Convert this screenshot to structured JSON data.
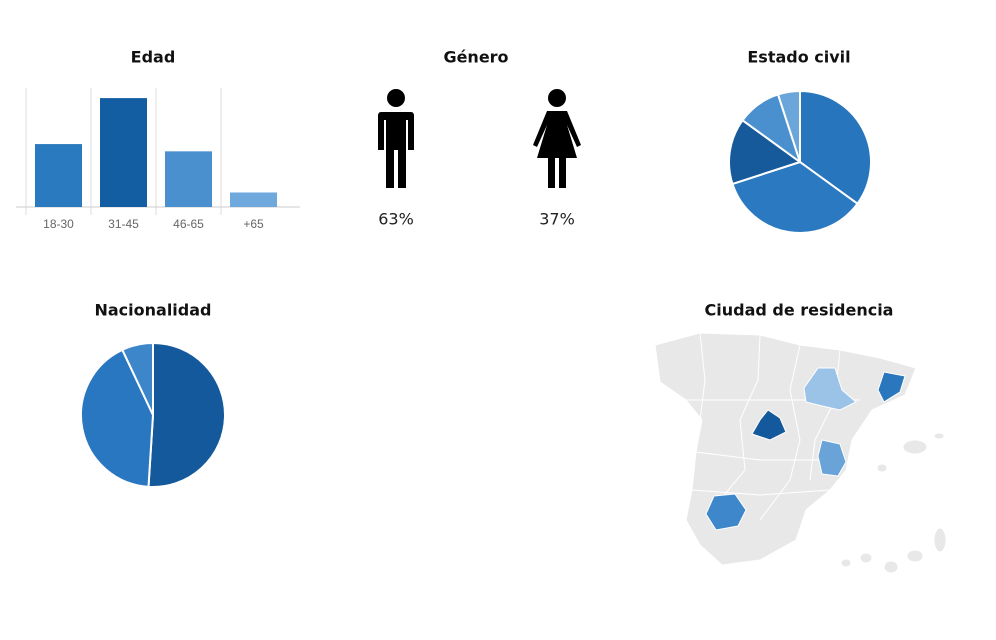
{
  "chart_data": [
    {
      "type": "bar",
      "title": "Edad",
      "categories": [
        "18-30",
        "31-45",
        "46-65",
        "+65"
      ],
      "values": [
        26,
        45,
        23,
        6
      ],
      "colors": [
        "#2a7abf",
        "#135ea3",
        "#4a8fce",
        "#6ea8dc"
      ]
    },
    {
      "type": "icon",
      "title": "Género",
      "values": [
        63,
        37
      ],
      "value_labels": [
        "63%",
        "37%"
      ],
      "color": "#000000"
    },
    {
      "type": "pie",
      "title": "Estado civil",
      "values": [
        35,
        35,
        15,
        10,
        5
      ],
      "colors": [
        "#2675bd",
        "#2a79c1",
        "#165a9c",
        "#4a8fce",
        "#6aa6da"
      ]
    },
    {
      "type": "pie",
      "title": "Nacionalidad",
      "values": [
        51,
        42,
        7
      ],
      "colors": [
        "#14599c",
        "#2877c0",
        "#3d86ca"
      ]
    },
    {
      "type": "map",
      "title": "Ciudad de residencia"
    }
  ]
}
